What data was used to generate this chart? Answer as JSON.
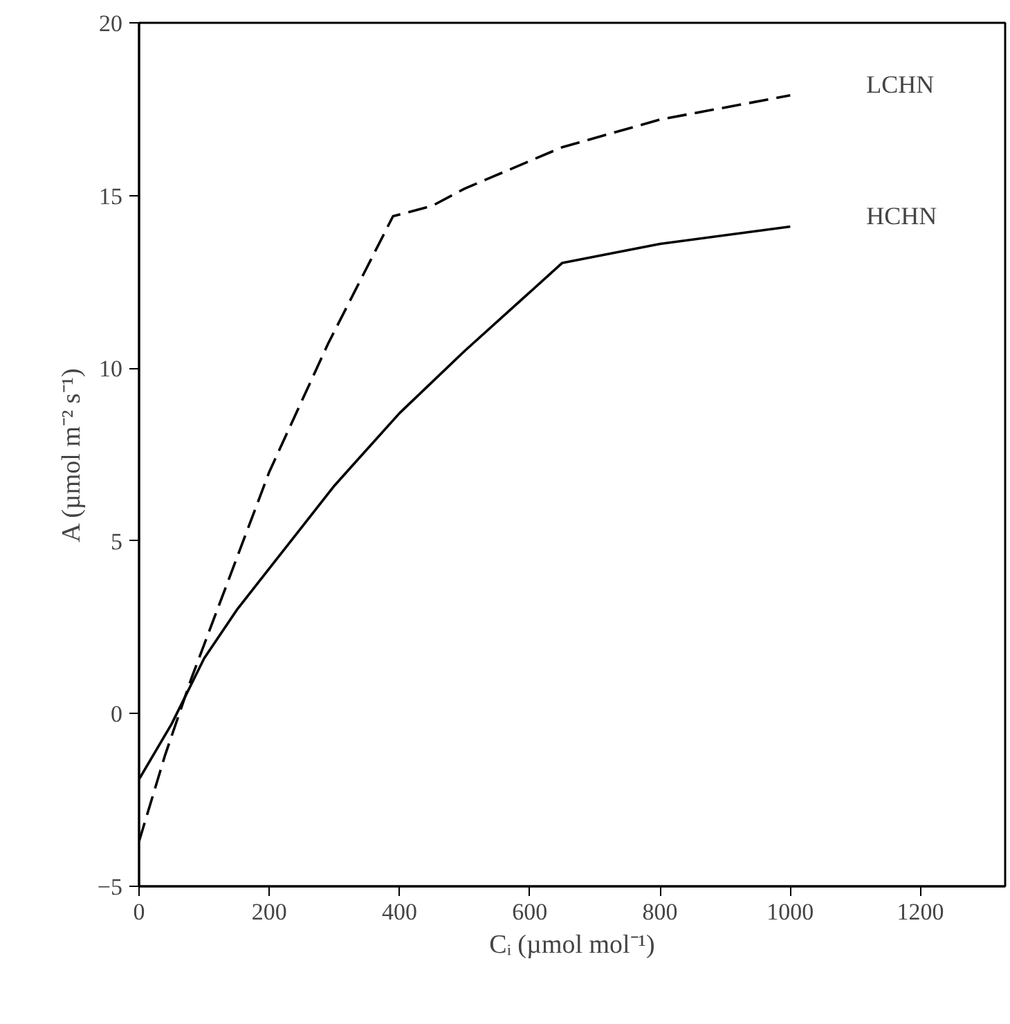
{
  "chart_data": {
    "type": "line",
    "xlabel": "Cᵢ (µmol mol⁻¹)",
    "ylabel": "A (µmol m⁻² s⁻¹)",
    "xlim": [
      0,
      1330
    ],
    "ylim": [
      -5,
      20
    ],
    "xticks": [
      0,
      200,
      400,
      600,
      800,
      1000,
      1200
    ],
    "yticks": [
      -5,
      0,
      5,
      10,
      15,
      20
    ],
    "grid": false,
    "series": [
      {
        "name": "LCHN",
        "color": "#000000",
        "line_style": "dashed",
        "x": [
          0,
          40,
          80,
          150,
          200,
          290,
          390,
          450,
          500,
          650,
          800,
          1000
        ],
        "values": [
          -3.7,
          -1.2,
          1,
          4.5,
          7,
          10.7,
          14.4,
          14.7,
          15.2,
          16.4,
          17.2,
          17.9
        ]
      },
      {
        "name": "HCHN",
        "color": "#000000",
        "line_style": "solid",
        "x": [
          0,
          50,
          100,
          150,
          200,
          300,
          400,
          500,
          650,
          800,
          1000
        ],
        "values": [
          -1.9,
          -0.3,
          1.6,
          3,
          4.2,
          6.6,
          8.7,
          10.5,
          13.05,
          13.6,
          14.1
        ]
      }
    ]
  }
}
